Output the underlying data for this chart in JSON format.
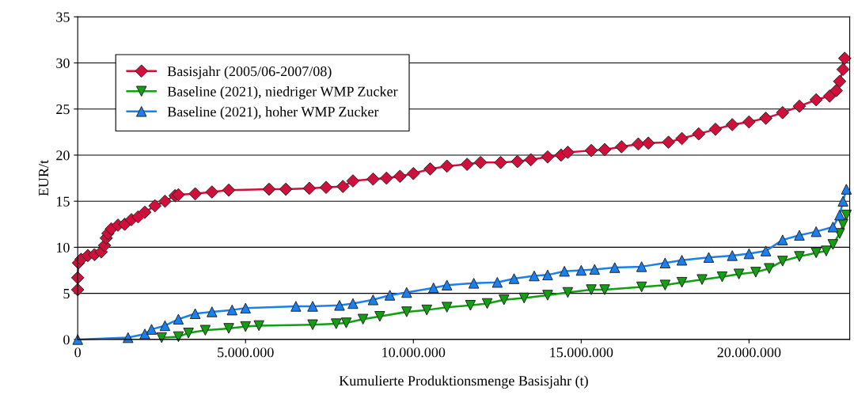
{
  "chart_data": {
    "type": "line",
    "xlabel": "Kumulierte Produktionsmenge Basisjahr (t)",
    "ylabel": "EUR/t",
    "xlim": [
      0,
      23000000
    ],
    "xticks": [
      {
        "value": 0,
        "label": "0"
      },
      {
        "value": 5000000,
        "label": "5.000.000"
      },
      {
        "value": 10000000,
        "label": "10.000.000"
      },
      {
        "value": 15000000,
        "label": "15.000.000"
      },
      {
        "value": 20000000,
        "label": "20.000.000"
      }
    ],
    "ylim": [
      0,
      35
    ],
    "yticks": [
      0,
      5,
      10,
      15,
      20,
      25,
      30,
      35
    ],
    "grid": "y",
    "legend": "top left",
    "series": [
      {
        "name": "Basisjahr (2005/06-2007/08)",
        "color": "#d0103a",
        "marker": "diamond",
        "x": [
          0,
          0,
          20000,
          100000,
          300000,
          500000,
          700000,
          800000,
          850000,
          900000,
          1000000,
          1200000,
          1400000,
          1600000,
          1800000,
          2000000,
          2300000,
          2600000,
          2900000,
          3000000,
          3500000,
          4000000,
          4500000,
          5700000,
          6200000,
          6900000,
          7400000,
          7900000,
          8200000,
          8800000,
          9200000,
          9600000,
          10000000,
          10500000,
          11000000,
          11600000,
          12000000,
          12600000,
          13100000,
          13500000,
          14000000,
          14400000,
          14600000,
          15300000,
          15700000,
          16200000,
          16700000,
          17000000,
          17600000,
          18000000,
          18500000,
          19000000,
          19500000,
          20000000,
          20500000,
          21000000,
          21500000,
          22000000,
          22400000,
          22600000,
          22700000,
          22800000,
          22850000
        ],
        "values": [
          5.4,
          6.7,
          8.3,
          8.7,
          9.1,
          9.2,
          9.5,
          10.2,
          11,
          11.5,
          12,
          12.4,
          12.5,
          13,
          13.3,
          13.8,
          14.5,
          15,
          15.6,
          15.7,
          15.8,
          16.0,
          16.2,
          16.3,
          16.3,
          16.4,
          16.5,
          16.6,
          17.2,
          17.4,
          17.5,
          17.7,
          18.0,
          18.5,
          18.8,
          19.0,
          19.2,
          19.2,
          19.3,
          19.5,
          19.8,
          20.0,
          20.3,
          20.5,
          20.6,
          20.9,
          21.2,
          21.3,
          21.4,
          21.8,
          22.3,
          22.8,
          23.3,
          23.6,
          24.0,
          24.6,
          25.3,
          26.0,
          26.4,
          27,
          28,
          29.3,
          30.5
        ]
      },
      {
        "name": "Baseline (2021), niedriger WMP Zucker",
        "color": "#10a010",
        "marker": "triangle_down",
        "x": [
          2500000,
          3000000,
          3300000,
          3800000,
          4500000,
          5000000,
          5400000,
          7000000,
          7700000,
          8000000,
          8500000,
          9000000,
          9800000,
          10400000,
          11000000,
          11700000,
          12200000,
          12700000,
          13300000,
          14000000,
          14600000,
          15300000,
          15700000,
          16800000,
          17500000,
          18000000,
          18600000,
          19200000,
          19700000,
          20200000,
          20600000,
          21000000,
          21500000,
          22000000,
          22300000,
          22500000,
          22700000,
          22800000,
          22900000
        ],
        "values": [
          0.2,
          0.3,
          0.7,
          1.0,
          1.2,
          1.4,
          1.5,
          1.6,
          1.7,
          1.8,
          2.2,
          2.5,
          3.0,
          3.2,
          3.5,
          3.7,
          3.9,
          4.3,
          4.5,
          4.8,
          5.1,
          5.4,
          5.4,
          5.7,
          5.9,
          6.2,
          6.5,
          6.8,
          7.1,
          7.3,
          7.7,
          8.5,
          9.0,
          9.4,
          9.6,
          10.3,
          11.5,
          12.5,
          13.5
        ]
      },
      {
        "name": "Baseline (2021), hoher WMP Zucker",
        "color": "#1a80f0",
        "marker": "triangle",
        "x": [
          0,
          1500000,
          2000000,
          2200000,
          2600000,
          3000000,
          3500000,
          4000000,
          4600000,
          5000000,
          6500000,
          7000000,
          7800000,
          8200000,
          8800000,
          9300000,
          9800000,
          10600000,
          11000000,
          11800000,
          12500000,
          13000000,
          13600000,
          14000000,
          14500000,
          15000000,
          15400000,
          16000000,
          16800000,
          17500000,
          18000000,
          18800000,
          19500000,
          20000000,
          20500000,
          21000000,
          21500000,
          22000000,
          22500000,
          22700000,
          22800000,
          22900000
        ],
        "values": [
          0,
          0.2,
          0.6,
          1.1,
          1.5,
          2.2,
          2.8,
          3.0,
          3.2,
          3.4,
          3.6,
          3.6,
          3.7,
          3.9,
          4.3,
          4.8,
          5.1,
          5.6,
          5.9,
          6.1,
          6.2,
          6.6,
          6.9,
          7.0,
          7.4,
          7.5,
          7.6,
          7.8,
          7.9,
          8.3,
          8.6,
          8.9,
          9.1,
          9.3,
          9.6,
          10.8,
          11.3,
          11.7,
          12.2,
          13.5,
          15,
          16.3
        ]
      }
    ]
  }
}
